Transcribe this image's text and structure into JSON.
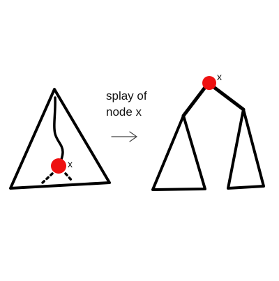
{
  "caption": {
    "line1": "splay of",
    "line2": "node x"
  },
  "node_label_before": "x",
  "node_label_after": "x",
  "colors": {
    "stroke": "#000000",
    "node": "#ee1111",
    "arrow": "#444444",
    "background": "#ffffff"
  }
}
